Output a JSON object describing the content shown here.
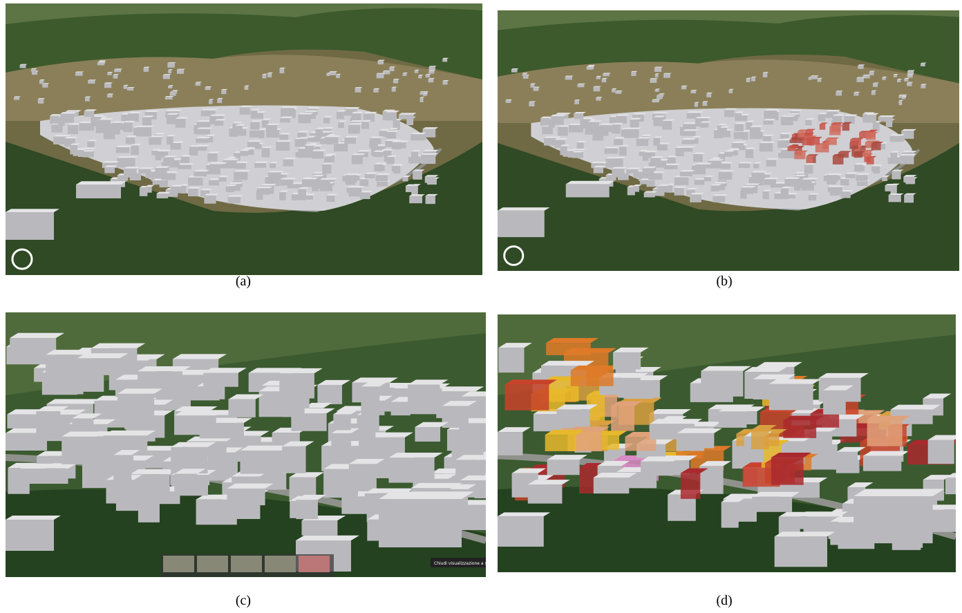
{
  "panels": [
    {
      "caption": "(a)"
    },
    {
      "caption": "(b)"
    },
    {
      "caption": "(c)",
      "overlay": "Chiudi visualizzazione a schermo"
    },
    {
      "caption": "(d)"
    }
  ]
}
